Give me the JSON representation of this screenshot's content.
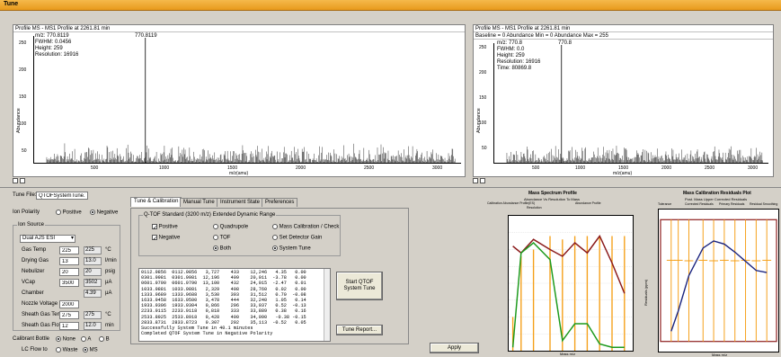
{
  "window": {
    "title": "Tune"
  },
  "spectrum_left": {
    "header": "Profile  MS  - MS1 Profile at 2261.81 min",
    "info": [
      "m/z: 770.8119",
      "FWHM: 0.0456",
      "Height: 259",
      "Resolution: 16916"
    ],
    "peak_label": "770.8119",
    "ylabel": "Abundance",
    "xlabel": "m/z(amu)",
    "yticks": [
      "250",
      "200",
      "150",
      "100",
      "50",
      "0"
    ],
    "xticks": [
      "500",
      "1000",
      "1500",
      "2000",
      "2500",
      "3000"
    ]
  },
  "spectrum_right": {
    "header": "Profile  MS  - MS1 Profile at 2261.81 min",
    "header2": "Baseline = 0  Abundance Min = 0  Abundance Max = 255",
    "info": [
      "m/z: 770.8",
      "FWHM: 0.0",
      "Height: 259",
      "Resolution: 16916",
      "Time: 80869.8"
    ],
    "peak_label": "770.8",
    "ylabel": "Abundance",
    "xlabel": "m/z(amu)",
    "yticks": [
      "250",
      "200",
      "150",
      "100",
      "50",
      "0"
    ],
    "xticks": [
      "500",
      "1000",
      "1500",
      "2000",
      "2500",
      "3000"
    ]
  },
  "left_panel": {
    "tune_file_label": "Tune File:",
    "tune_file_value": "QTOFSystemTune.tun",
    "ion_polarity_label": "Ion Polarity",
    "positive_label": "Positive",
    "negative_label": "Negative",
    "ion_source_label": "Ion Source",
    "source_value": "Dual AJS ESI",
    "fields": [
      {
        "label": "Gas Temp",
        "set": "225",
        "actual": "225",
        "unit": "°C"
      },
      {
        "label": "Drying Gas",
        "set": "13",
        "actual": "13.0",
        "unit": "l/min"
      },
      {
        "label": "Nebulizer",
        "set": "20",
        "actual": "20",
        "unit": "psig"
      },
      {
        "label": "VCap",
        "set": "3500",
        "actual": "3502",
        "unit": "µA"
      },
      {
        "label": "Chamber",
        "set": "",
        "actual": "4.39",
        "unit": "µA"
      },
      {
        "label": "Nozzle Voltage",
        "set": "2000",
        "actual": "",
        "unit": ""
      },
      {
        "label": "Sheath Gas Temp",
        "set": "275",
        "actual": "275",
        "unit": "°C"
      },
      {
        "label": "Sheath Gas Flow",
        "set": "12",
        "actual": "12.0",
        "unit": "min"
      }
    ],
    "calibrant_label": "Calibrant Bottle",
    "cal_none": "None",
    "cal_a": "A",
    "cal_b": "B",
    "lc_flow_label": "LC Flow to",
    "lc_waste": "Waste",
    "lc_ms": "MS"
  },
  "tabs": [
    "Tune & Calibration",
    "Manual Tune",
    "Instrument State",
    "Preferences"
  ],
  "tune_cal": {
    "group_label": "Q-TOF   Standard (3200 m/z) Extended Dynamic Range",
    "positive": "Positive",
    "negative": "Negative",
    "quadrupole": "Quadrupole",
    "tof": "TOF",
    "both": "Both",
    "mass_cal": "Mass Calibration / Check",
    "set_detector": "Set Detector Gain",
    "system_tune": "System Tune",
    "log": [
      "0112.9856  0112.9856   3,727    433    12,246   4.35   0.00",
      "0301.9981  0301.9981  12,196    409    20,011  -3.78   0.00",
      "0601.9790  0601.9790  13,100    432    24,015  -2.47   0.01",
      "1033.9881  1033.9881   2,329    408    28,760   0.02   0.00",
      "1333.9689  1333.9688   3,530    393    31,512   0.70  -0.08",
      "1633.9458  1633.9500   3,478    444    32,240   1.05   0.14",
      "1933.9306  1933.9304   0,866    296    33,037   0.52  -0.13",
      "2233.9115  2233.9118   0,818    333    33,889   0.38   0.16",
      "2533.8925  2533.8918   0,428    400    34,090   -0.38 -0.15",
      "2833.8731  2833.8723   0.307    292    35,113  -0.52   0.05",
      "Successfully System Tune in 40.1 minutes",
      "Completed QTOF System Tune in Negative Polarity"
    ],
    "start_button": "Start QTOF System Tune",
    "report_button": "Tune Report...",
    "apply_button": "Apply"
  },
  "chart_data": [
    {
      "type": "line",
      "title": "Mass Spectrum Profile",
      "subtitle": "Abundance Vs Resolution To Mass",
      "legend": [
        "Calibration Abundance Profile(ES)",
        "Abundance Profile",
        "Resolution"
      ],
      "xlabel": "Mass m/z",
      "x": [
        100,
        300,
        600,
        1000,
        1300,
        1600,
        1900,
        2200,
        2500,
        2800
      ],
      "series": [
        {
          "name": "Resolution",
          "color": "#8b1a1a",
          "values": [
            31,
            29,
            33,
            30,
            28,
            32,
            29,
            34,
            26,
            17
          ]
        },
        {
          "name": "Abundance Profile",
          "color": "#1c9a1c",
          "values": [
            1,
            29,
            32,
            27,
            3,
            8,
            8,
            2,
            1,
            1
          ]
        }
      ],
      "bars": {
        "color": "#f5a01a",
        "values": [
          10,
          28,
          30,
          34,
          33,
          34,
          34,
          34,
          34,
          34
        ]
      }
    },
    {
      "type": "line",
      "title": "Mass Calibration Residuals Plot",
      "subtitle": "Post. Mass Upper Corrected Residuals",
      "legend": [
        "Tolerance",
        "Corrected Residuals",
        "Primary Residuals",
        "Residual Smoothing"
      ],
      "xlabel": "Mass m/z",
      "x": [
        100,
        300,
        600,
        1000,
        1300,
        1600,
        1900,
        2200,
        2500,
        2800
      ],
      "series": [
        {
          "name": "Residual Smoothing",
          "color": "#1a237e",
          "values": [
            -5.0,
            -3.0,
            0.5,
            3.2,
            3.9,
            3.6,
            2.8,
            1.9,
            1.0,
            0.8
          ]
        }
      ],
      "bars": {
        "color": "#f5a01a",
        "values": [
          4,
          4,
          3.9,
          4,
          3.9,
          4,
          3.9,
          4,
          3.9,
          4
        ]
      },
      "ylabel": "Residuals (ppm)"
    }
  ]
}
